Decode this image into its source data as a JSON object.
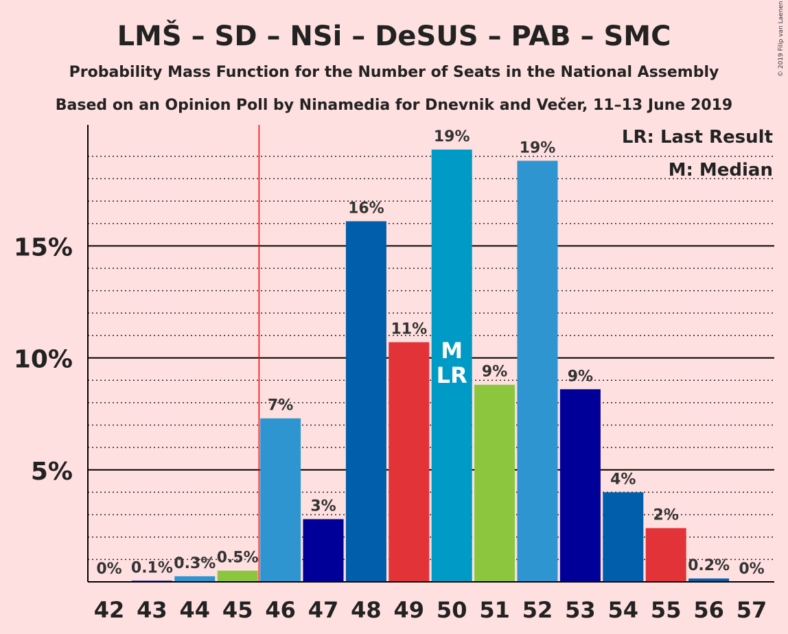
{
  "copyright": "© 2019 Filip van Laenen",
  "chart_data": {
    "type": "bar",
    "title": "LMŠ – SD – NSi – DeSUS – PAB – SMC",
    "subtitle": "Probability Mass Function for the Number of Seats in the National Assembly",
    "subtitle2": "Based on an Opinion Poll by Ninamedia for Dnevnik and Večer, 11–13 June 2019",
    "categories": [
      "42",
      "43",
      "44",
      "45",
      "46",
      "47",
      "48",
      "49",
      "50",
      "51",
      "52",
      "53",
      "54",
      "55",
      "56",
      "57"
    ],
    "values": [
      0,
      0.05,
      0.25,
      0.5,
      7.3,
      2.8,
      16.1,
      10.7,
      19.3,
      8.8,
      18.8,
      8.6,
      4.0,
      2.4,
      0.15,
      0
    ],
    "labels": [
      "0%",
      "0.1%",
      "0.3%",
      "0.5%",
      "7%",
      "3%",
      "16%",
      "11%",
      "19%",
      "9%",
      "19%",
      "9%",
      "4%",
      "2%",
      "0.2%",
      "0%"
    ],
    "colors": [
      "#2e95d0",
      "#000099",
      "#2e95d0",
      "#8cc63f",
      "#2e95d0",
      "#000099",
      "#005eab",
      "#e13338",
      "#009ac7",
      "#8cc63f",
      "#2e95d0",
      "#000099",
      "#005eab",
      "#e13338",
      "#005eab",
      "#009ac7"
    ],
    "ylim": [
      0,
      21
    ],
    "yticks": [
      5,
      10,
      15
    ],
    "ytick_labels": [
      "5%",
      "10%",
      "15%"
    ],
    "last_result_seat": "45.5",
    "median_seat": "50",
    "median_marker": "M",
    "last_result_marker": "LR",
    "legend": [
      "LR: Last Result",
      "M: Median"
    ],
    "legend_position": "top-right",
    "grid": true
  }
}
